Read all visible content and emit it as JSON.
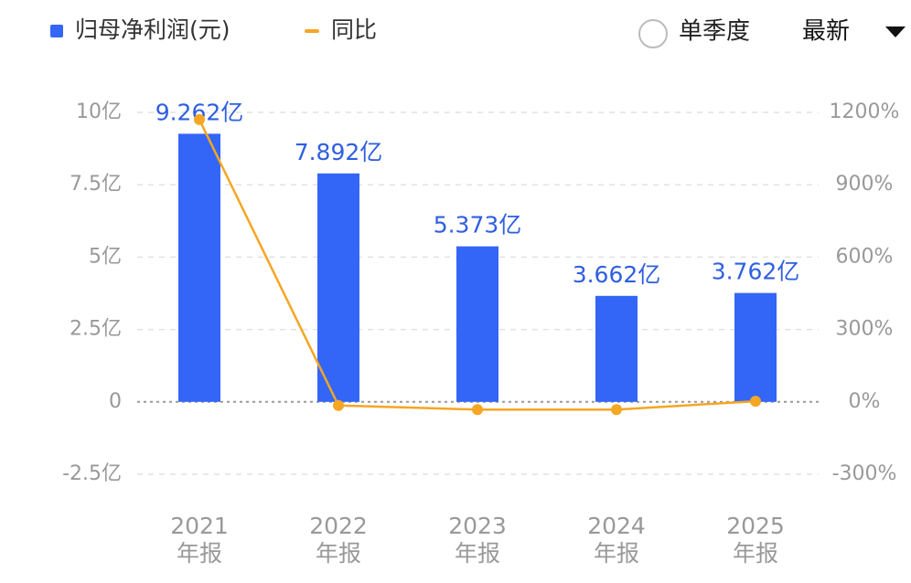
{
  "chart_data": {
    "type": "bar",
    "categories": [
      "2021年报",
      "2022年报",
      "2023年报",
      "2024年报",
      "2025年报"
    ],
    "series": [
      {
        "name": "归母净利润(元)",
        "color": "#3366f6",
        "values": [
          9.262,
          7.892,
          5.373,
          3.662,
          3.762
        ],
        "value_labels": [
          "9.262亿",
          "7.892亿",
          "5.373亿",
          "3.662亿",
          "3.762亿"
        ]
      },
      {
        "name": "同比",
        "type": "line",
        "axis": "y2",
        "color": "#f5a623",
        "values": [
          1170,
          -14.8,
          -31.9,
          -31.8,
          2.7
        ]
      }
    ],
    "ylim": [
      -2.5,
      10
    ],
    "yticks": [
      {
        "value": -2.5,
        "label": "-2.5亿"
      },
      0,
      {
        "value": 2.5,
        "label": "2.5亿"
      },
      {
        "value": 5,
        "label": "5亿"
      },
      {
        "value": 7.5,
        "label": "7.5亿"
      },
      {
        "value": 10,
        "label": "10亿"
      }
    ],
    "y2lim": [
      -300,
      1200
    ],
    "y2ticks": [
      {
        "value": -300,
        "label": "-300%"
      },
      {
        "value": 0,
        "label": "0%"
      },
      {
        "value": 300,
        "label": "300%"
      },
      {
        "value": 600,
        "label": "600%"
      },
      {
        "value": 900,
        "label": "900%"
      },
      {
        "value": 1200,
        "label": "1200%"
      }
    ],
    "grid": true,
    "controls": {
      "period": "单季度",
      "sort": "最新"
    }
  }
}
